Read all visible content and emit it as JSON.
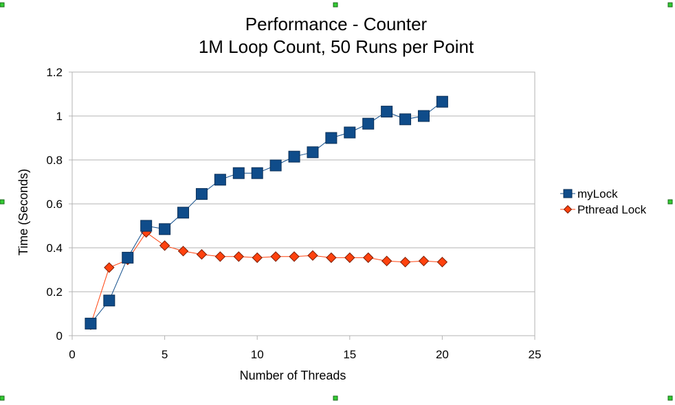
{
  "chart_data": {
    "type": "line",
    "title": [
      "Performance - Counter",
      "1M Loop Count, 50 Runs per Point"
    ],
    "xlabel": "Number of Threads",
    "ylabel": "Time (Seconds)",
    "xlim": [
      0,
      25
    ],
    "ylim": [
      0,
      1.2
    ],
    "x_ticks": [
      "0",
      "5",
      "10",
      "15",
      "20",
      "25"
    ],
    "y_ticks": [
      "0",
      "0.2",
      "0.4",
      "0.6",
      "0.8",
      "1",
      "1.2"
    ],
    "grid": "horizontal",
    "legend_position": "right",
    "x": [
      1,
      2,
      3,
      4,
      5,
      6,
      7,
      8,
      9,
      10,
      11,
      12,
      13,
      14,
      15,
      16,
      17,
      18,
      19,
      20
    ],
    "series": [
      {
        "name": "myLock",
        "color": "#0f4c8a",
        "marker": "square",
        "values": [
          0.055,
          0.16,
          0.355,
          0.5,
          0.485,
          0.56,
          0.645,
          0.71,
          0.74,
          0.74,
          0.775,
          0.815,
          0.835,
          0.9,
          0.925,
          0.965,
          1.02,
          0.985,
          1.0,
          1.065
        ]
      },
      {
        "name": "Pthread Lock",
        "color": "#ff420e",
        "marker": "diamond",
        "values": [
          0.05,
          0.31,
          0.345,
          0.47,
          0.41,
          0.385,
          0.37,
          0.36,
          0.36,
          0.355,
          0.36,
          0.36,
          0.365,
          0.355,
          0.355,
          0.355,
          0.34,
          0.335,
          0.34,
          0.335
        ]
      }
    ]
  }
}
